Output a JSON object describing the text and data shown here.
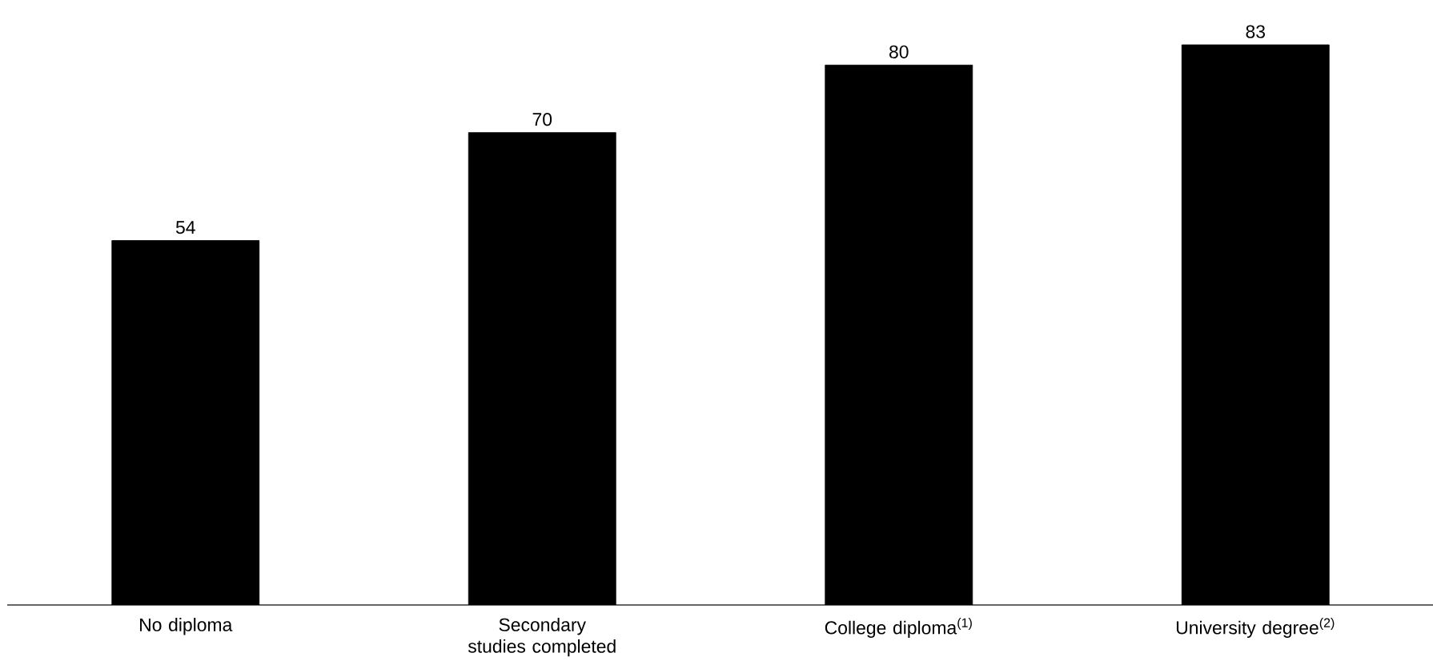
{
  "chart_data": {
    "type": "bar",
    "categories": [
      "No diploma",
      "Secondary studies completed",
      "College diploma$^{(1)}$",
      "University degree$^{(2)}$"
    ],
    "values": [
      54,
      70,
      80,
      83
    ],
    "color": "#000000",
    "tick_labels": "x",
    "data_labels": true
  }
}
